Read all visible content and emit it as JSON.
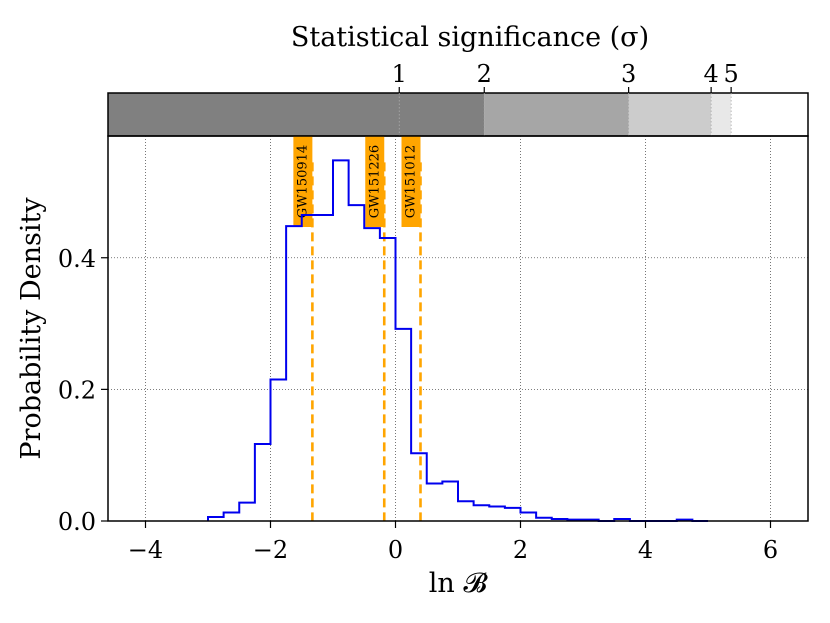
{
  "chart_data": {
    "type": "histogram",
    "xlabel": "ln 𝓑",
    "ylabel": "Probability Density",
    "xlim": [
      -4.6,
      6.6
    ],
    "ylim": [
      0,
      0.585
    ],
    "xticks": [
      -4,
      -2,
      0,
      2,
      4,
      6
    ],
    "xtick_labels": [
      "−4",
      "−2",
      "0",
      "2",
      "4",
      "6"
    ],
    "yticks": [
      0.0,
      0.2,
      0.4
    ],
    "ytick_labels": [
      "0.0",
      "0.2",
      "0.4"
    ],
    "grid": true,
    "bin_edges": [
      -3.0,
      -2.75,
      -2.5,
      -2.25,
      -2.0,
      -1.75,
      -1.5,
      -1.25,
      -1.0,
      -0.75,
      -0.5,
      -0.25,
      0.0,
      0.25,
      0.5,
      0.75,
      1.0,
      1.25,
      1.5,
      1.75,
      2.0,
      2.25,
      2.5,
      2.75,
      3.0,
      3.25,
      3.5,
      3.75,
      4.0,
      4.25,
      4.5,
      4.75,
      5.0
    ],
    "density": [
      0.006,
      0.013,
      0.028,
      0.117,
      0.215,
      0.448,
      0.465,
      0.465,
      0.548,
      0.48,
      0.445,
      0.43,
      0.292,
      0.103,
      0.057,
      0.06,
      0.03,
      0.024,
      0.022,
      0.02,
      0.013,
      0.005,
      0.003,
      0.002,
      0.002,
      0.0,
      0.003,
      0.0,
      0.0,
      0.0,
      0.002,
      0.0
    ],
    "series_color": "#0000ee",
    "events": [
      {
        "name": "GW150914",
        "x": -1.33
      },
      {
        "name": "GW151226",
        "x": -0.18
      },
      {
        "name": "GW151012",
        "x": 0.4
      }
    ],
    "event_color": "#ffa500",
    "significance_bar": {
      "title": "Statistical significance (σ)",
      "ticks": [
        {
          "label": "1",
          "x": 0.06
        },
        {
          "label": "2",
          "x": 1.42
        },
        {
          "label": "3",
          "x": 3.73
        },
        {
          "label": "4",
          "x": 5.05
        },
        {
          "label": "5",
          "x": 5.37
        }
      ],
      "bands": [
        {
          "x0": -4.6,
          "x1": 1.42,
          "color": "#808080"
        },
        {
          "x0": 1.42,
          "x1": 3.73,
          "color": "#a6a6a6"
        },
        {
          "x0": 3.73,
          "x1": 5.05,
          "color": "#cccccc"
        },
        {
          "x0": 5.05,
          "x1": 5.37,
          "color": "#e8e8e8"
        },
        {
          "x0": 5.37,
          "x1": 6.6,
          "color": "#ffffff"
        }
      ]
    }
  }
}
